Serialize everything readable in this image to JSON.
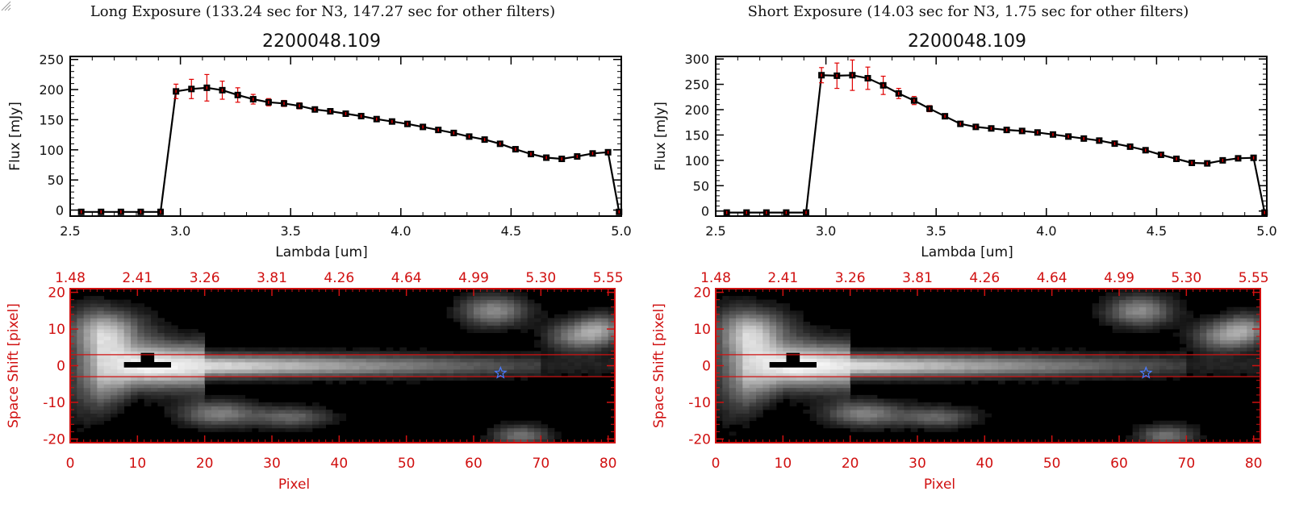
{
  "panels": [
    {
      "caption": "Long Exposure (133.24 sec for N3, 147.27 sec for other filters)",
      "chart_data": [
        {
          "type": "line",
          "title": "2200048.109",
          "xlabel": "Lambda [um]",
          "ylabel": "Flux [mJy]",
          "xlim": [
            2.5,
            5.0
          ],
          "ylim": [
            -10,
            255
          ],
          "xticks": [
            "2.5",
            "3.0",
            "3.5",
            "4.0",
            "4.5",
            "5.0"
          ],
          "yticks": [
            "0",
            "50",
            "100",
            "150",
            "200",
            "250"
          ],
          "xtick_values": [
            2.5,
            3.0,
            3.5,
            4.0,
            4.5,
            5.0
          ],
          "ytick_values": [
            0,
            50,
            100,
            150,
            200,
            250
          ],
          "series": [
            {
              "x": [
                2.55,
                2.64,
                2.73,
                2.82,
                2.91,
                2.98,
                3.05,
                3.12,
                3.19,
                3.26,
                3.33,
                3.4,
                3.47,
                3.54,
                3.61,
                3.68,
                3.75,
                3.82,
                3.89,
                3.96,
                4.03,
                4.1,
                4.17,
                4.24,
                4.31,
                4.38,
                4.45,
                4.52,
                4.59,
                4.66,
                4.73,
                4.8,
                4.87,
                4.94,
                4.99
              ],
              "y": [
                -3,
                -3,
                -3,
                -3,
                -3,
                197,
                201,
                203,
                199,
                191,
                184,
                179,
                177,
                173,
                167,
                164,
                160,
                156,
                151,
                147,
                143,
                138,
                133,
                128,
                122,
                117,
                110,
                101,
                93,
                87,
                85,
                89,
                94,
                96,
                -3
              ],
              "err": [
                0,
                0,
                0,
                0,
                0,
                12,
                16,
                22,
                15,
                12,
                8,
                6,
                5,
                5,
                4,
                4,
                4,
                4,
                3,
                3,
                3,
                3,
                3,
                3,
                3,
                3,
                3,
                3,
                3,
                3,
                3,
                3,
                3,
                3,
                0
              ]
            }
          ],
          "line_color": "#000000",
          "marker_color": "#000000",
          "error_color": "#e00000"
        },
        {
          "type": "heatmap",
          "xlabel": "Pixel",
          "ylabel": "Space Shift [pixel]",
          "xlim": [
            0,
            81
          ],
          "ylim": [
            -21,
            21
          ],
          "xticks": [
            "0",
            "10",
            "20",
            "30",
            "40",
            "50",
            "60",
            "70",
            "80"
          ],
          "yticks": [
            "-20",
            "-10",
            "0",
            "10",
            "20"
          ],
          "xtick_values": [
            0,
            10,
            20,
            30,
            40,
            50,
            60,
            70,
            80
          ],
          "ytick_values": [
            -20,
            -10,
            0,
            10,
            20
          ],
          "top_ticks": [
            "1.48",
            "2.41",
            "3.26",
            "3.81",
            "4.26",
            "4.64",
            "4.99",
            "5.30",
            "5.55"
          ],
          "aperture_lines": [
            3,
            -3
          ],
          "star_marker": {
            "x": 64,
            "y": -2
          },
          "axis_color": "#d01010"
        }
      ]
    },
    {
      "caption": "Short Exposure (14.03 sec for N3, 1.75 sec for other filters)",
      "chart_data": [
        {
          "type": "line",
          "title": "2200048.109",
          "xlabel": "Lambda [um]",
          "ylabel": "Flux [mJy]",
          "xlim": [
            2.5,
            5.0
          ],
          "ylim": [
            -10,
            305
          ],
          "xticks": [
            "2.5",
            "3.0",
            "3.5",
            "4.0",
            "4.5",
            "5.0"
          ],
          "yticks": [
            "0",
            "50",
            "100",
            "150",
            "200",
            "250",
            "300"
          ],
          "xtick_values": [
            2.5,
            3.0,
            3.5,
            4.0,
            4.5,
            5.0
          ],
          "ytick_values": [
            0,
            50,
            100,
            150,
            200,
            250,
            300
          ],
          "series": [
            {
              "x": [
                2.55,
                2.64,
                2.73,
                2.82,
                2.91,
                2.98,
                3.05,
                3.12,
                3.19,
                3.26,
                3.33,
                3.4,
                3.47,
                3.54,
                3.61,
                3.68,
                3.75,
                3.82,
                3.89,
                3.96,
                4.03,
                4.1,
                4.17,
                4.24,
                4.31,
                4.38,
                4.45,
                4.52,
                4.59,
                4.66,
                4.73,
                4.8,
                4.87,
                4.94,
                4.99
              ],
              "y": [
                -3,
                -3,
                -3,
                -3,
                -3,
                268,
                267,
                268,
                262,
                248,
                232,
                218,
                202,
                187,
                172,
                166,
                163,
                160,
                158,
                155,
                151,
                147,
                143,
                139,
                133,
                127,
                120,
                111,
                103,
                95,
                94,
                100,
                104,
                105,
                -3
              ],
              "err": [
                0,
                0,
                0,
                0,
                0,
                15,
                25,
                30,
                22,
                18,
                10,
                8,
                6,
                5,
                4,
                4,
                4,
                4,
                3,
                3,
                3,
                3,
                3,
                3,
                3,
                3,
                3,
                3,
                3,
                3,
                3,
                3,
                3,
                3,
                0
              ]
            }
          ],
          "line_color": "#000000",
          "marker_color": "#000000",
          "error_color": "#e00000"
        },
        {
          "type": "heatmap",
          "xlabel": "Pixel",
          "ylabel": "Space Shift [pixel]",
          "xlim": [
            0,
            81
          ],
          "ylim": [
            -21,
            21
          ],
          "xticks": [
            "0",
            "10",
            "20",
            "30",
            "40",
            "50",
            "60",
            "70",
            "80"
          ],
          "yticks": [
            "-20",
            "-10",
            "0",
            "10",
            "20"
          ],
          "xtick_values": [
            0,
            10,
            20,
            30,
            40,
            50,
            60,
            70,
            80
          ],
          "ytick_values": [
            -20,
            -10,
            0,
            10,
            20
          ],
          "top_ticks": [
            "1.48",
            "2.41",
            "3.26",
            "3.81",
            "4.26",
            "4.64",
            "4.99",
            "5.30",
            "5.55"
          ],
          "aperture_lines": [
            3,
            -3
          ],
          "star_marker": {
            "x": 64,
            "y": -2
          },
          "axis_color": "#d01010"
        }
      ]
    }
  ]
}
